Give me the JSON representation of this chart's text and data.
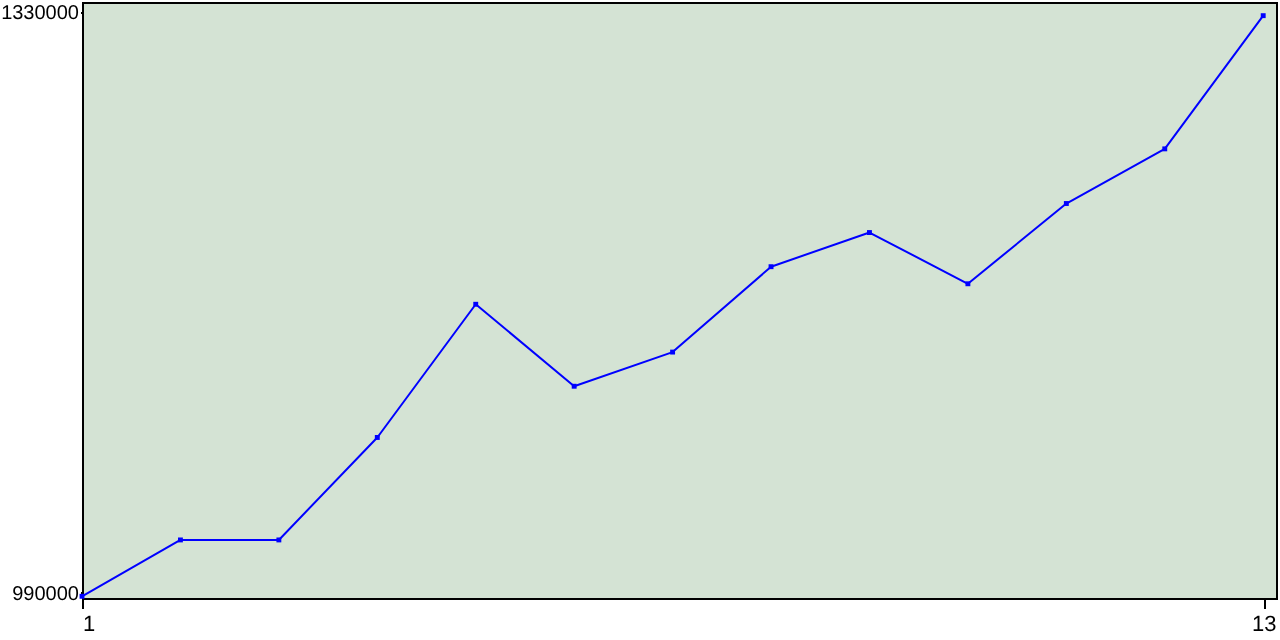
{
  "chart_data": {
    "type": "line",
    "x": [
      1,
      2,
      3,
      4,
      5,
      6,
      7,
      8,
      9,
      10,
      11,
      12,
      13
    ],
    "series": [
      {
        "color": "#0000ff",
        "values": [
          988000,
          1021000,
          1021000,
          1081000,
          1159000,
          1111000,
          1131000,
          1181000,
          1201000,
          1171000,
          1218000,
          1250000,
          1328000
        ]
      }
    ],
    "xlim": [
      1,
      13.13
    ],
    "ylim": [
      987000,
      1336000
    ],
    "xticks": [
      1,
      13
    ],
    "yticks": [
      990000,
      1330000
    ],
    "grid": false,
    "marker": "square",
    "line_style": "solid"
  }
}
